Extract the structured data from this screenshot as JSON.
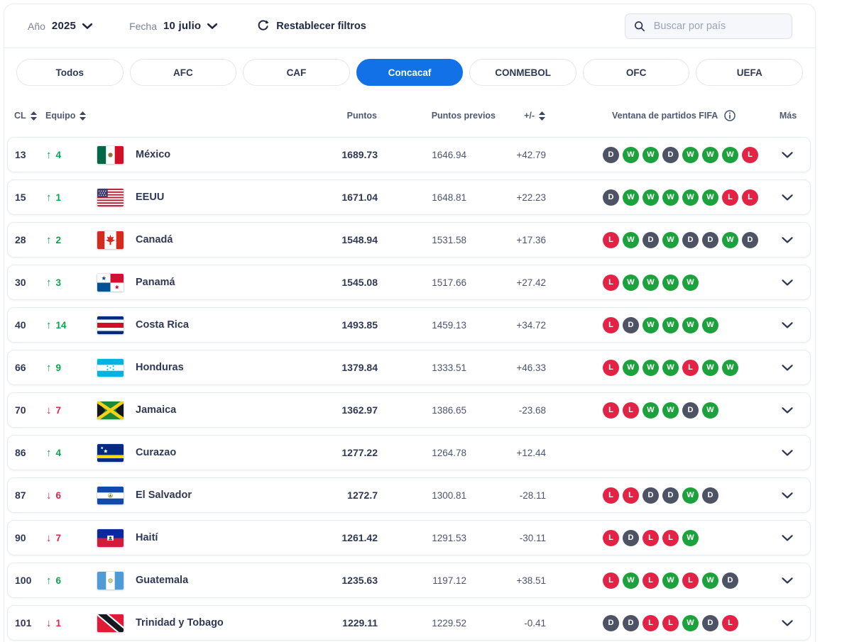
{
  "filters": {
    "year_label": "Año",
    "year_value": "2025",
    "date_label": "Fecha",
    "date_value": "10 julio",
    "reset_label": "Restablecer filtros",
    "search_placeholder": "Buscar por país"
  },
  "confederation_tabs": [
    {
      "label": "Todos",
      "active": false
    },
    {
      "label": "AFC",
      "active": false
    },
    {
      "label": "CAF",
      "active": false
    },
    {
      "label": "Concacaf",
      "active": true
    },
    {
      "label": "CONMEBOL",
      "active": false
    },
    {
      "label": "OFC",
      "active": false
    },
    {
      "label": "UEFA",
      "active": false
    }
  ],
  "table": {
    "columns": {
      "rank": "CL",
      "team": "Equipo",
      "points": "Puntos",
      "prev_points": "Puntos previos",
      "delta": "+/-",
      "window": "Ventana de partidos FIFA",
      "more": "Más"
    },
    "rows": [
      {
        "rank": "13",
        "move_dir": "up",
        "move": "4",
        "flag": "mx",
        "team": "México",
        "points": "1689.73",
        "prev": "1646.94",
        "delta": "+42.79",
        "results": [
          "D",
          "W",
          "W",
          "D",
          "W",
          "W",
          "W",
          "L"
        ]
      },
      {
        "rank": "15",
        "move_dir": "up",
        "move": "1",
        "flag": "us",
        "team": "EEUU",
        "points": "1671.04",
        "prev": "1648.81",
        "delta": "+22.23",
        "results": [
          "D",
          "W",
          "W",
          "W",
          "W",
          "W",
          "L",
          "L"
        ]
      },
      {
        "rank": "28",
        "move_dir": "up",
        "move": "2",
        "flag": "ca",
        "team": "Canadá",
        "points": "1548.94",
        "prev": "1531.58",
        "delta": "+17.36",
        "results": [
          "L",
          "W",
          "D",
          "W",
          "D",
          "D",
          "W",
          "D"
        ]
      },
      {
        "rank": "30",
        "move_dir": "up",
        "move": "3",
        "flag": "pa",
        "team": "Panamá",
        "points": "1545.08",
        "prev": "1517.66",
        "delta": "+27.42",
        "results": [
          "L",
          "W",
          "W",
          "W",
          "W"
        ]
      },
      {
        "rank": "40",
        "move_dir": "up",
        "move": "14",
        "flag": "cr",
        "team": "Costa Rica",
        "points": "1493.85",
        "prev": "1459.13",
        "delta": "+34.72",
        "results": [
          "L",
          "D",
          "W",
          "W",
          "W",
          "W"
        ]
      },
      {
        "rank": "66",
        "move_dir": "up",
        "move": "9",
        "flag": "hn",
        "team": "Honduras",
        "points": "1379.84",
        "prev": "1333.51",
        "delta": "+46.33",
        "results": [
          "L",
          "W",
          "W",
          "W",
          "L",
          "W",
          "W"
        ]
      },
      {
        "rank": "70",
        "move_dir": "down",
        "move": "7",
        "flag": "jm",
        "team": "Jamaica",
        "points": "1362.97",
        "prev": "1386.65",
        "delta": "-23.68",
        "results": [
          "L",
          "L",
          "W",
          "W",
          "D",
          "W"
        ]
      },
      {
        "rank": "86",
        "move_dir": "up",
        "move": "4",
        "flag": "cw",
        "team": "Curazao",
        "points": "1277.22",
        "prev": "1264.78",
        "delta": "+12.44",
        "results": []
      },
      {
        "rank": "87",
        "move_dir": "down",
        "move": "6",
        "flag": "sv",
        "team": "El Salvador",
        "points": "1272.7",
        "prev": "1300.81",
        "delta": "-28.11",
        "results": [
          "L",
          "L",
          "D",
          "D",
          "W",
          "D"
        ]
      },
      {
        "rank": "90",
        "move_dir": "down",
        "move": "7",
        "flag": "ht",
        "team": "Haití",
        "points": "1261.42",
        "prev": "1291.53",
        "delta": "-30.11",
        "results": [
          "L",
          "D",
          "L",
          "L",
          "W"
        ]
      },
      {
        "rank": "100",
        "move_dir": "up",
        "move": "6",
        "flag": "gt",
        "team": "Guatemala",
        "points": "1235.63",
        "prev": "1197.12",
        "delta": "+38.51",
        "results": [
          "L",
          "W",
          "L",
          "W",
          "L",
          "W",
          "D"
        ]
      },
      {
        "rank": "101",
        "move_dir": "down",
        "move": "1",
        "flag": "tt",
        "team": "Trinidad y Tobago",
        "points": "1229.11",
        "prev": "1229.52",
        "delta": "-0.41",
        "results": [
          "D",
          "D",
          "L",
          "L",
          "W",
          "D",
          "L"
        ]
      }
    ]
  },
  "icons": {
    "movement_up": "↑",
    "movement_down": "↓"
  },
  "colors": {
    "accent_blue": "#1271e6",
    "win_green": "#1ca23c",
    "loss_red": "#e32345",
    "draw_slate": "#4d5364",
    "up_green": "#0da24e",
    "down_red": "#e32345",
    "text_navy": "#2f3854"
  }
}
